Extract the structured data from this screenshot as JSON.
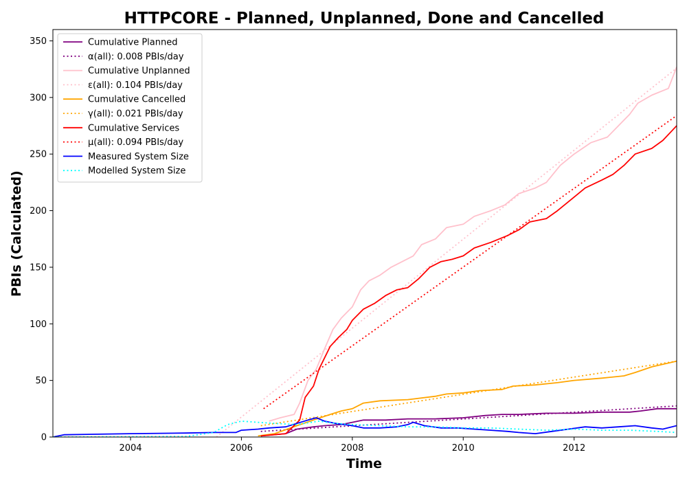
{
  "chart_data": {
    "type": "line",
    "title": "HTTPCORE - Planned, Unplanned, Done  and Cancelled",
    "xlabel": "Time",
    "ylabel": "PBIs (Calculated)",
    "xlim": [
      2002.6,
      2013.85
    ],
    "ylim": [
      0,
      360
    ],
    "xticks": [
      2004,
      2006,
      2008,
      2010,
      2012
    ],
    "yticks": [
      0,
      50,
      100,
      150,
      200,
      250,
      300,
      350
    ],
    "grid": false,
    "legend_position": "top-left",
    "series": [
      {
        "name": "Cumulative Planned",
        "color": "#800080",
        "style": "solid",
        "points": [
          [
            2006.35,
            1
          ],
          [
            2006.8,
            3
          ],
          [
            2007.0,
            7
          ],
          [
            2007.3,
            9
          ],
          [
            2007.5,
            10
          ],
          [
            2007.8,
            11
          ],
          [
            2008.0,
            13
          ],
          [
            2008.2,
            15
          ],
          [
            2008.6,
            15
          ],
          [
            2009.0,
            16
          ],
          [
            2009.5,
            16
          ],
          [
            2010.0,
            17
          ],
          [
            2010.4,
            19
          ],
          [
            2010.7,
            20
          ],
          [
            2011.0,
            20
          ],
          [
            2011.5,
            21
          ],
          [
            2012.0,
            21
          ],
          [
            2012.5,
            22
          ],
          [
            2013.0,
            22
          ],
          [
            2013.2,
            23
          ],
          [
            2013.5,
            25
          ],
          [
            2013.85,
            25
          ]
        ]
      },
      {
        "name": "α(all): 0.008 PBIs/day",
        "color": "#800080",
        "style": "dotted",
        "points": [
          [
            2006.35,
            5
          ],
          [
            2013.85,
            27.5
          ]
        ]
      },
      {
        "name": "Cumulative Unplanned",
        "color": "#ffc0cb",
        "style": "solid",
        "points": [
          [
            2006.5,
            14
          ],
          [
            2006.7,
            17
          ],
          [
            2006.95,
            20
          ],
          [
            2007.05,
            30
          ],
          [
            2007.2,
            50
          ],
          [
            2007.35,
            60
          ],
          [
            2007.5,
            78
          ],
          [
            2007.65,
            95
          ],
          [
            2007.8,
            105
          ],
          [
            2008.0,
            115
          ],
          [
            2008.15,
            130
          ],
          [
            2008.3,
            138
          ],
          [
            2008.5,
            143
          ],
          [
            2008.7,
            150
          ],
          [
            2008.9,
            155
          ],
          [
            2009.1,
            160
          ],
          [
            2009.25,
            170
          ],
          [
            2009.5,
            175
          ],
          [
            2009.7,
            185
          ],
          [
            2010.0,
            188
          ],
          [
            2010.2,
            195
          ],
          [
            2010.5,
            200
          ],
          [
            2010.75,
            205
          ],
          [
            2011.0,
            215
          ],
          [
            2011.3,
            220
          ],
          [
            2011.5,
            225
          ],
          [
            2011.75,
            240
          ],
          [
            2012.0,
            250
          ],
          [
            2012.3,
            260
          ],
          [
            2012.6,
            265
          ],
          [
            2012.9,
            280
          ],
          [
            2013.0,
            285
          ],
          [
            2013.15,
            295
          ],
          [
            2013.4,
            302
          ],
          [
            2013.7,
            308
          ],
          [
            2013.85,
            327
          ]
        ]
      },
      {
        "name": "ε(all): 0.104 PBIs/day",
        "color": "#ffc0cb",
        "style": "dotted",
        "points": [
          [
            2005.55,
            0
          ],
          [
            2013.85,
            326
          ]
        ]
      },
      {
        "name": "Cumulative Cancelled",
        "color": "#ffa500",
        "style": "solid",
        "points": [
          [
            2006.3,
            1
          ],
          [
            2006.6,
            3
          ],
          [
            2007.0,
            10
          ],
          [
            2007.3,
            15
          ],
          [
            2007.6,
            20
          ],
          [
            2007.8,
            23
          ],
          [
            2008.0,
            25
          ],
          [
            2008.2,
            30
          ],
          [
            2008.5,
            32
          ],
          [
            2009.0,
            33
          ],
          [
            2009.5,
            36
          ],
          [
            2009.7,
            38
          ],
          [
            2010.0,
            39
          ],
          [
            2010.3,
            41
          ],
          [
            2010.7,
            42
          ],
          [
            2010.9,
            45
          ],
          [
            2011.3,
            46
          ],
          [
            2011.7,
            48
          ],
          [
            2012.0,
            50
          ],
          [
            2012.5,
            52
          ],
          [
            2012.9,
            54
          ],
          [
            2013.1,
            57
          ],
          [
            2013.4,
            62
          ],
          [
            2013.85,
            67
          ]
        ]
      },
      {
        "name": "γ(all): 0.021 PBIs/day",
        "color": "#ffa500",
        "style": "dotted",
        "points": [
          [
            2006.35,
            10
          ],
          [
            2013.85,
            67
          ]
        ]
      },
      {
        "name": "Cumulative Services",
        "color": "#ff0000",
        "style": "solid",
        "points": [
          [
            2006.35,
            1
          ],
          [
            2006.8,
            3
          ],
          [
            2007.05,
            15
          ],
          [
            2007.15,
            35
          ],
          [
            2007.3,
            45
          ],
          [
            2007.4,
            60
          ],
          [
            2007.5,
            70
          ],
          [
            2007.6,
            80
          ],
          [
            2007.75,
            88
          ],
          [
            2007.9,
            95
          ],
          [
            2008.0,
            103
          ],
          [
            2008.2,
            113
          ],
          [
            2008.4,
            118
          ],
          [
            2008.6,
            125
          ],
          [
            2008.8,
            130
          ],
          [
            2009.0,
            132
          ],
          [
            2009.2,
            140
          ],
          [
            2009.4,
            150
          ],
          [
            2009.6,
            155
          ],
          [
            2009.8,
            157
          ],
          [
            2010.0,
            160
          ],
          [
            2010.2,
            167
          ],
          [
            2010.5,
            172
          ],
          [
            2010.8,
            178
          ],
          [
            2011.0,
            183
          ],
          [
            2011.2,
            190
          ],
          [
            2011.5,
            193
          ],
          [
            2011.7,
            200
          ],
          [
            2012.0,
            212
          ],
          [
            2012.2,
            220
          ],
          [
            2012.5,
            227
          ],
          [
            2012.7,
            232
          ],
          [
            2012.9,
            240
          ],
          [
            2013.1,
            250
          ],
          [
            2013.4,
            255
          ],
          [
            2013.6,
            262
          ],
          [
            2013.85,
            275
          ]
        ]
      },
      {
        "name": "μ(all): 0.094 PBIs/day",
        "color": "#ff0000",
        "style": "dotted",
        "points": [
          [
            2006.4,
            25
          ],
          [
            2013.85,
            284
          ]
        ]
      },
      {
        "name": "Measured System Size",
        "color": "#0000ff",
        "style": "solid",
        "points": [
          [
            2002.6,
            0
          ],
          [
            2002.8,
            2
          ],
          [
            2004.0,
            3
          ],
          [
            2005.0,
            3.5
          ],
          [
            2005.5,
            4
          ],
          [
            2005.9,
            4
          ],
          [
            2006.0,
            6
          ],
          [
            2006.3,
            7
          ],
          [
            2006.5,
            8
          ],
          [
            2006.8,
            9
          ],
          [
            2007.0,
            12
          ],
          [
            2007.2,
            15
          ],
          [
            2007.35,
            17
          ],
          [
            2007.5,
            14
          ],
          [
            2007.7,
            12
          ],
          [
            2008.0,
            10
          ],
          [
            2008.2,
            8
          ],
          [
            2008.5,
            8
          ],
          [
            2008.8,
            9
          ],
          [
            2009.0,
            11
          ],
          [
            2009.1,
            13
          ],
          [
            2009.3,
            10
          ],
          [
            2009.6,
            8
          ],
          [
            2009.9,
            8
          ],
          [
            2010.2,
            7
          ],
          [
            2010.5,
            6
          ],
          [
            2010.8,
            5
          ],
          [
            2011.0,
            4
          ],
          [
            2011.3,
            3
          ],
          [
            2011.6,
            5
          ],
          [
            2011.9,
            7
          ],
          [
            2012.2,
            9
          ],
          [
            2012.5,
            8
          ],
          [
            2012.8,
            9
          ],
          [
            2013.1,
            10
          ],
          [
            2013.4,
            8
          ],
          [
            2013.6,
            7
          ],
          [
            2013.85,
            10
          ]
        ]
      },
      {
        "name": "Modelled System Size",
        "color": "#00ffff",
        "style": "dotted",
        "points": [
          [
            2002.6,
            0
          ],
          [
            2005.0,
            0.5
          ],
          [
            2005.5,
            4
          ],
          [
            2005.75,
            11
          ],
          [
            2006.0,
            14
          ],
          [
            2006.3,
            13
          ],
          [
            2006.6,
            12
          ],
          [
            2007.0,
            11
          ],
          [
            2007.4,
            14
          ],
          [
            2007.7,
            12
          ],
          [
            2008.0,
            11
          ],
          [
            2008.5,
            10
          ],
          [
            2009.0,
            9
          ],
          [
            2009.5,
            9
          ],
          [
            2010.0,
            8
          ],
          [
            2010.5,
            8
          ],
          [
            2011.0,
            7
          ],
          [
            2011.5,
            6
          ],
          [
            2012.0,
            7
          ],
          [
            2012.5,
            6
          ],
          [
            2013.0,
            6
          ],
          [
            2013.5,
            5
          ],
          [
            2013.85,
            4
          ]
        ]
      }
    ]
  }
}
